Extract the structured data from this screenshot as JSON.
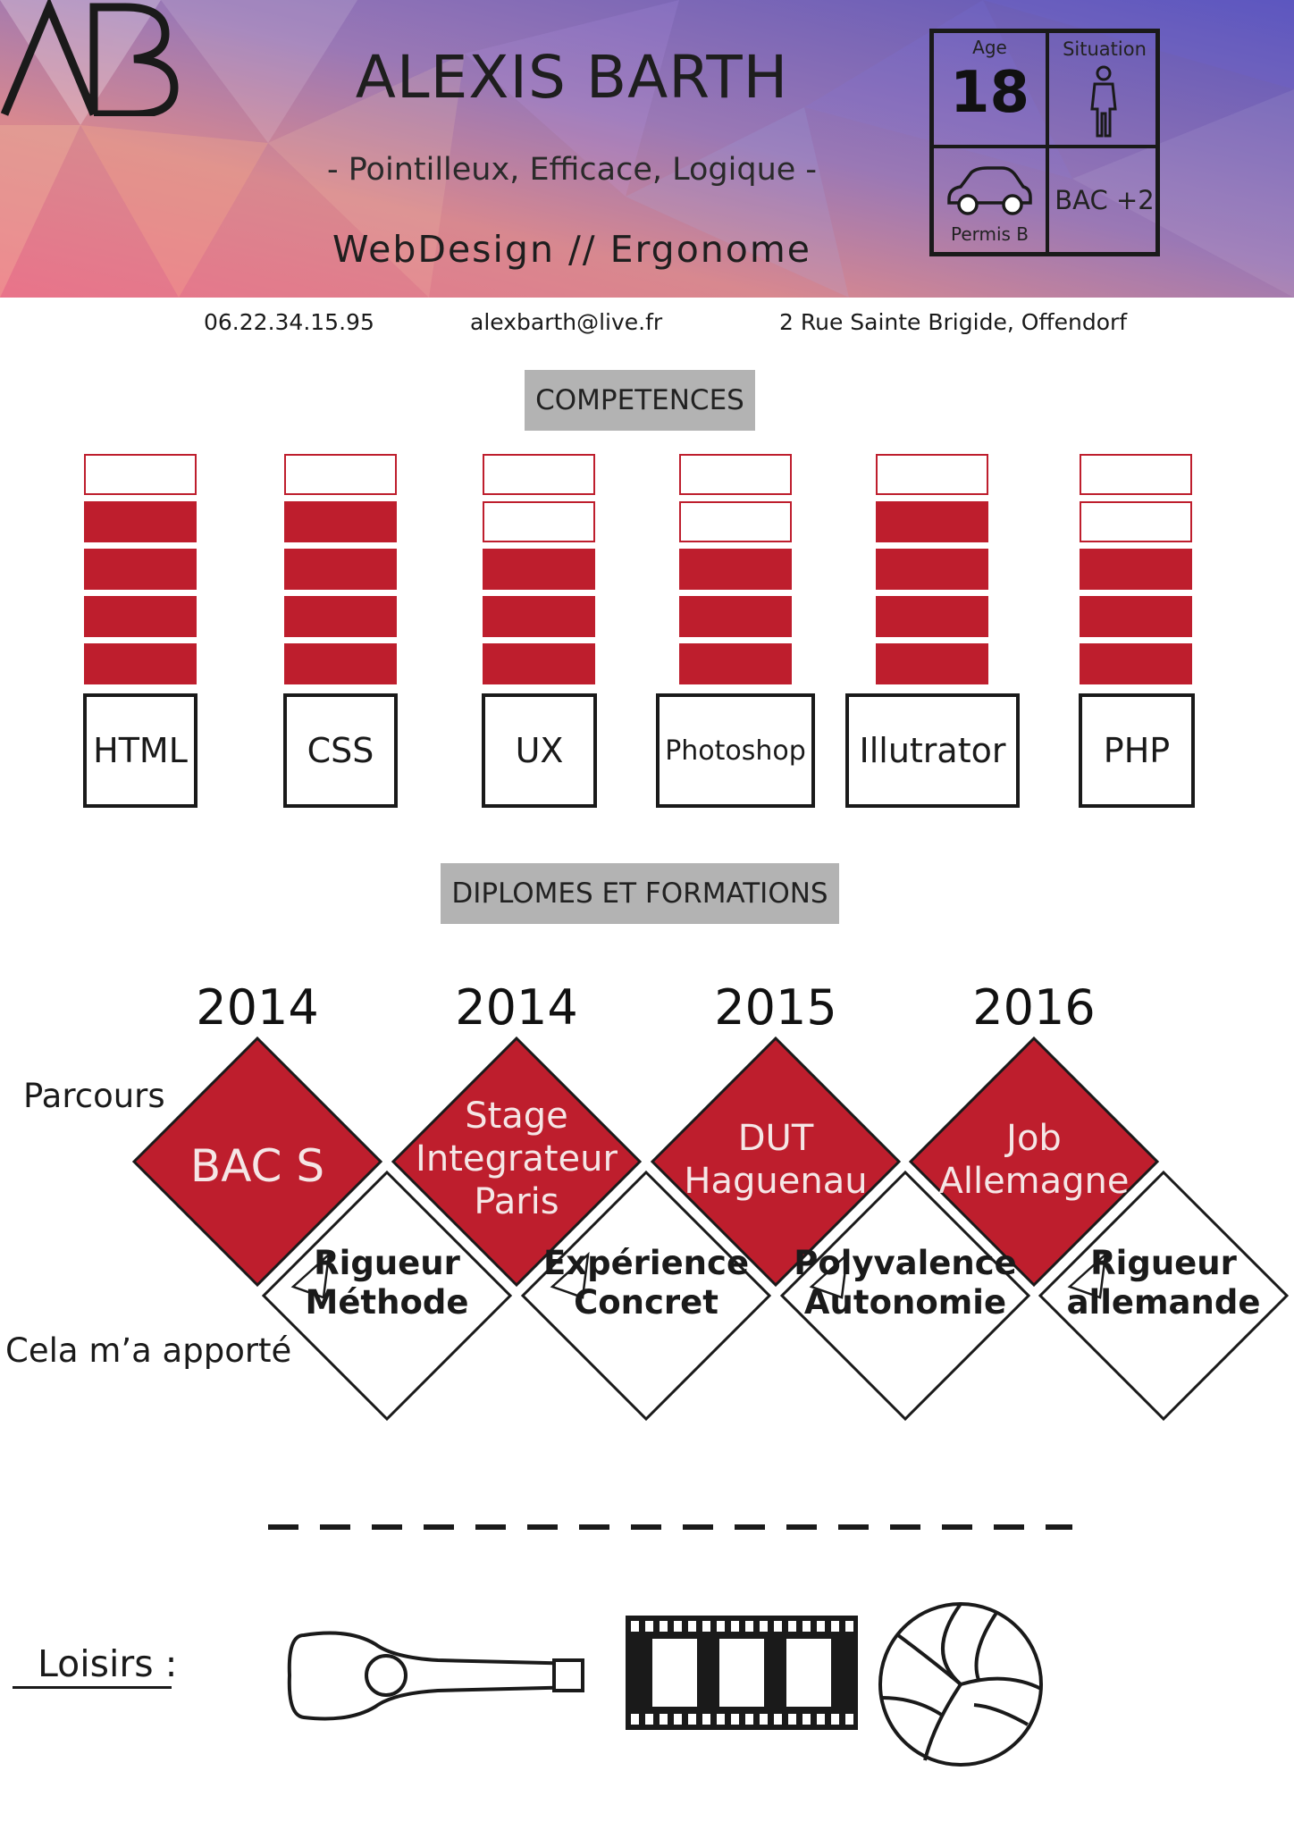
{
  "header": {
    "name": "ALEXIS BARTH",
    "tagline": "- Pointilleux, Efficace, Logique -",
    "role": "WebDesign // Ergonome",
    "logo_text": "AB"
  },
  "info": {
    "age_label": "Age",
    "age_value": "18",
    "situation_label": "Situation",
    "license_label": "Permis B",
    "education": "BAC +2"
  },
  "contact": {
    "phone": "06.22.34.15.95",
    "email": "alexbarth@live.fr",
    "address": "2 Rue Sainte Brigide, Offendorf"
  },
  "skills_title": "COMPETENCES",
  "skills": [
    {
      "label": "HTML",
      "level": 4,
      "max": 5
    },
    {
      "label": "CSS",
      "level": 4,
      "max": 5
    },
    {
      "label": "UX",
      "level": 3,
      "max": 5
    },
    {
      "label": "Photoshop",
      "level": 3,
      "max": 5
    },
    {
      "label": "Illutrator",
      "level": 4,
      "max": 5
    },
    {
      "label": "PHP",
      "level": 3,
      "max": 5
    }
  ],
  "education_title": "DIPLOMES ET FORMATIONS",
  "timeline": {
    "path_label": "Parcours",
    "gain_label": "Cela m’a apporté",
    "items": [
      {
        "year": "2014",
        "title": "BAC S",
        "gain": "Rigueur\nMéthode"
      },
      {
        "year": "2014",
        "title": "Stage\nIntegrateur\nParis",
        "gain": "Expérience\nConcret"
      },
      {
        "year": "2015",
        "title": "DUT\nHaguenau",
        "gain": "Polyvalence\nAutonomie"
      },
      {
        "year": "2016",
        "title": "Job\nAllemagne",
        "gain": "Rigueur\nallemande"
      }
    ]
  },
  "hobbies": {
    "label": "Loisirs :",
    "icons": [
      "guitar-icon",
      "film-strip-icon",
      "volleyball-icon"
    ]
  },
  "colors": {
    "accent": "#be1e2d",
    "section_bg": "#b3b3b3",
    "text": "#1a1a1a"
  }
}
